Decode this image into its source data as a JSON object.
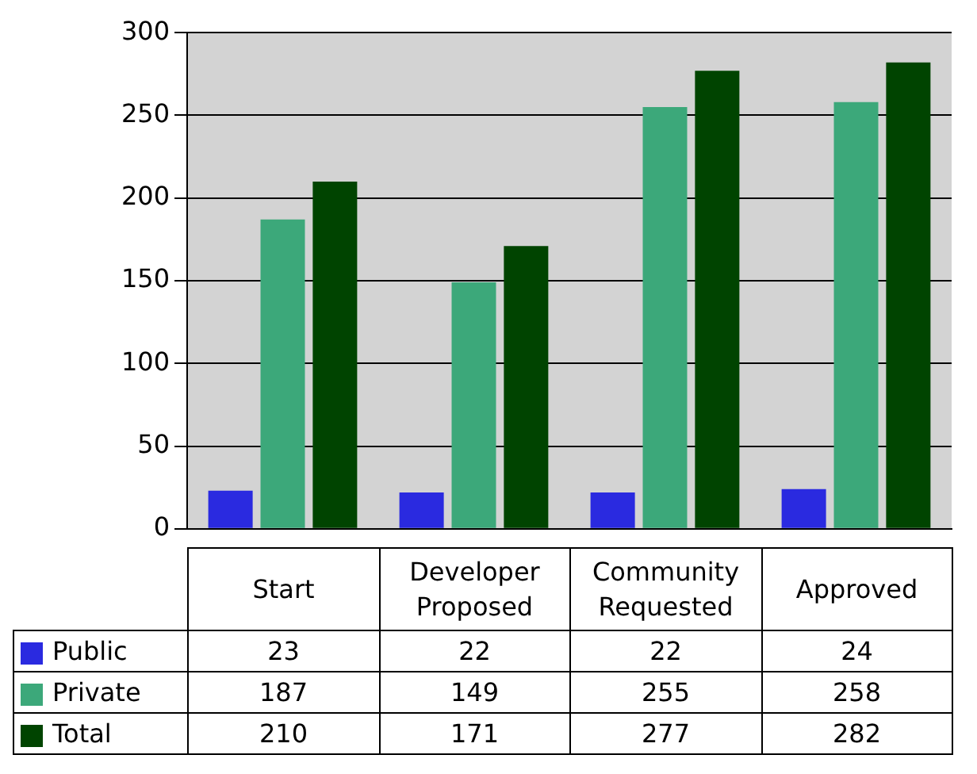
{
  "chart_data": {
    "type": "bar",
    "categories": [
      "Start",
      "Developer Proposed",
      "Community Requested",
      "Approved"
    ],
    "series": [
      {
        "name": "Public",
        "color": "#2a2ae0",
        "values": [
          23,
          22,
          22,
          24
        ]
      },
      {
        "name": "Private",
        "color": "#3ca87a",
        "values": [
          187,
          149,
          255,
          258
        ]
      },
      {
        "name": "Total",
        "color": "#004400",
        "values": [
          210,
          171,
          277,
          282
        ]
      }
    ],
    "ylim": [
      0,
      300
    ],
    "yticks": [
      0,
      50,
      100,
      150,
      200,
      250,
      300
    ],
    "grid": "y",
    "legend": "bottom",
    "data_labels": true
  }
}
